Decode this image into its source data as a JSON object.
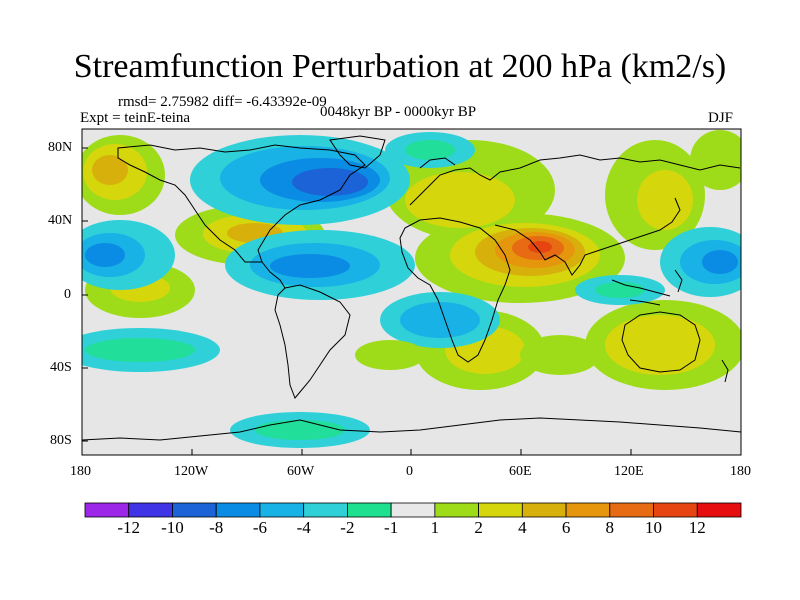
{
  "title": "Streamfunction Perturbation at 200 hPa (km2/s)",
  "stats": "rmsd= 2.75982 diff= -6.43392e-09",
  "experiment": "Expt = teinE-teina",
  "period": "0048kyr BP - 0000kyr BP",
  "season": "DJF",
  "lon_ticks": [
    "180",
    "120W",
    "60W",
    "0",
    "60E",
    "120E",
    "180"
  ],
  "lat_ticks": [
    "80N",
    "40N",
    "0",
    "40S",
    "80S"
  ],
  "colorbar": {
    "labels": [
      "-12",
      "-10",
      "-8",
      "-6",
      "-4",
      "-2",
      "-1",
      "1",
      "2",
      "4",
      "6",
      "8",
      "10",
      "12"
    ],
    "colors": [
      "#9c27e8",
      "#3f34e6",
      "#1b63d6",
      "#0a8ce4",
      "#19b2e6",
      "#2fd0d8",
      "#1fe08f",
      "#e8e8e8",
      "#9edc19",
      "#d6d60c",
      "#d8b00c",
      "#e6960c",
      "#e66b12",
      "#e64512",
      "#e60e0e"
    ]
  }
}
